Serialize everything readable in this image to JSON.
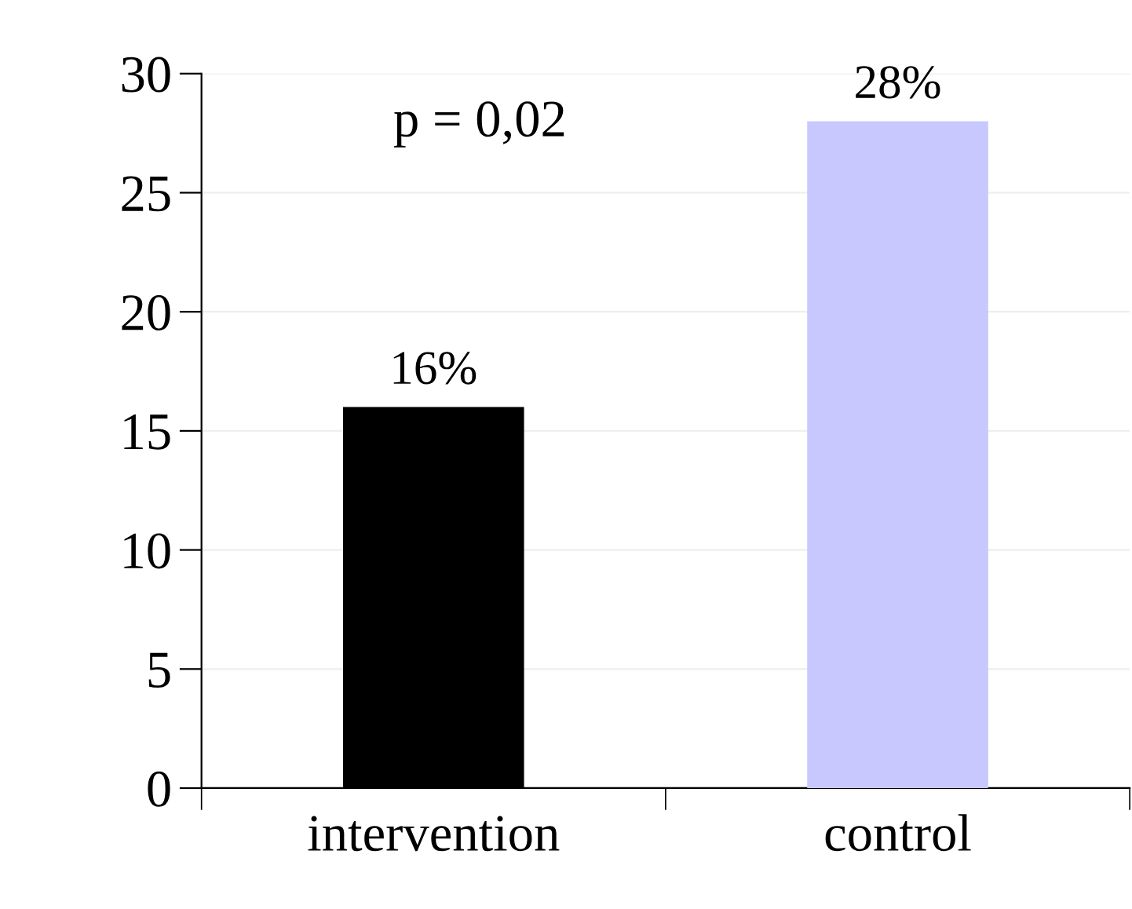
{
  "chart_data": {
    "type": "bar",
    "categories": [
      "intervention",
      "control"
    ],
    "values": [
      16,
      28
    ],
    "colors": [
      "#000000",
      "#c8c8ff"
    ],
    "value_labels": [
      "16%",
      "28%"
    ],
    "annotations": [
      "p = 0,02"
    ],
    "ylim": [
      0,
      30
    ],
    "yticks": [
      0,
      5,
      10,
      15,
      20,
      25,
      30
    ],
    "grid": "y",
    "legend": false
  }
}
